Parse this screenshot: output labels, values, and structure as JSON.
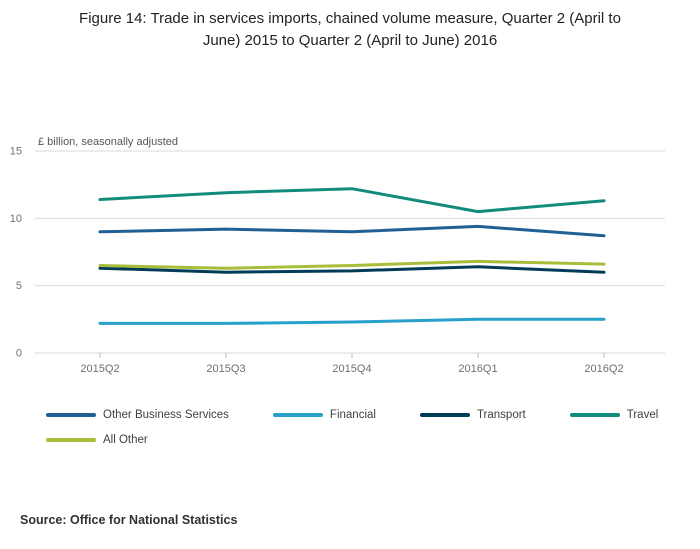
{
  "title": "Figure 14: Trade in services imports, chained volume measure, Quarter 2 (April to June) 2015 to Quarter 2 (April to June) 2016",
  "source": "Source: Office for National Statistics",
  "chart_data": {
    "type": "line",
    "title": "Figure 14: Trade in services imports, chained volume measure, Quarter 2 (April to June) 2015 to Quarter 2 (April to June) 2016",
    "categories": [
      "2015Q2",
      "2015Q3",
      "2015Q4",
      "2016Q1",
      "2016Q2"
    ],
    "series": [
      {
        "name": "Other Business Services",
        "color": "#206095",
        "values": [
          9.0,
          9.2,
          9.0,
          9.4,
          8.7
        ]
      },
      {
        "name": "Financial",
        "color": "#27A0CC",
        "values": [
          2.2,
          2.2,
          2.3,
          2.5,
          2.5
        ]
      },
      {
        "name": "Transport",
        "color": "#003C57",
        "values": [
          6.3,
          6.0,
          6.1,
          6.4,
          6.0
        ]
      },
      {
        "name": "Travel",
        "color": "#118C7B",
        "values": [
          11.4,
          11.9,
          12.2,
          10.5,
          11.3
        ]
      },
      {
        "name": "All Other",
        "color": "#A8BD3A",
        "values": [
          6.5,
          6.3,
          6.5,
          6.8,
          6.6
        ]
      }
    ],
    "xlabel": "",
    "ylabel": "£ billion, seasonally adjusted",
    "yticks": [
      0,
      5,
      10,
      15
    ],
    "ylim": [
      0,
      15
    ],
    "grid": true,
    "legend_position": "bottom"
  }
}
